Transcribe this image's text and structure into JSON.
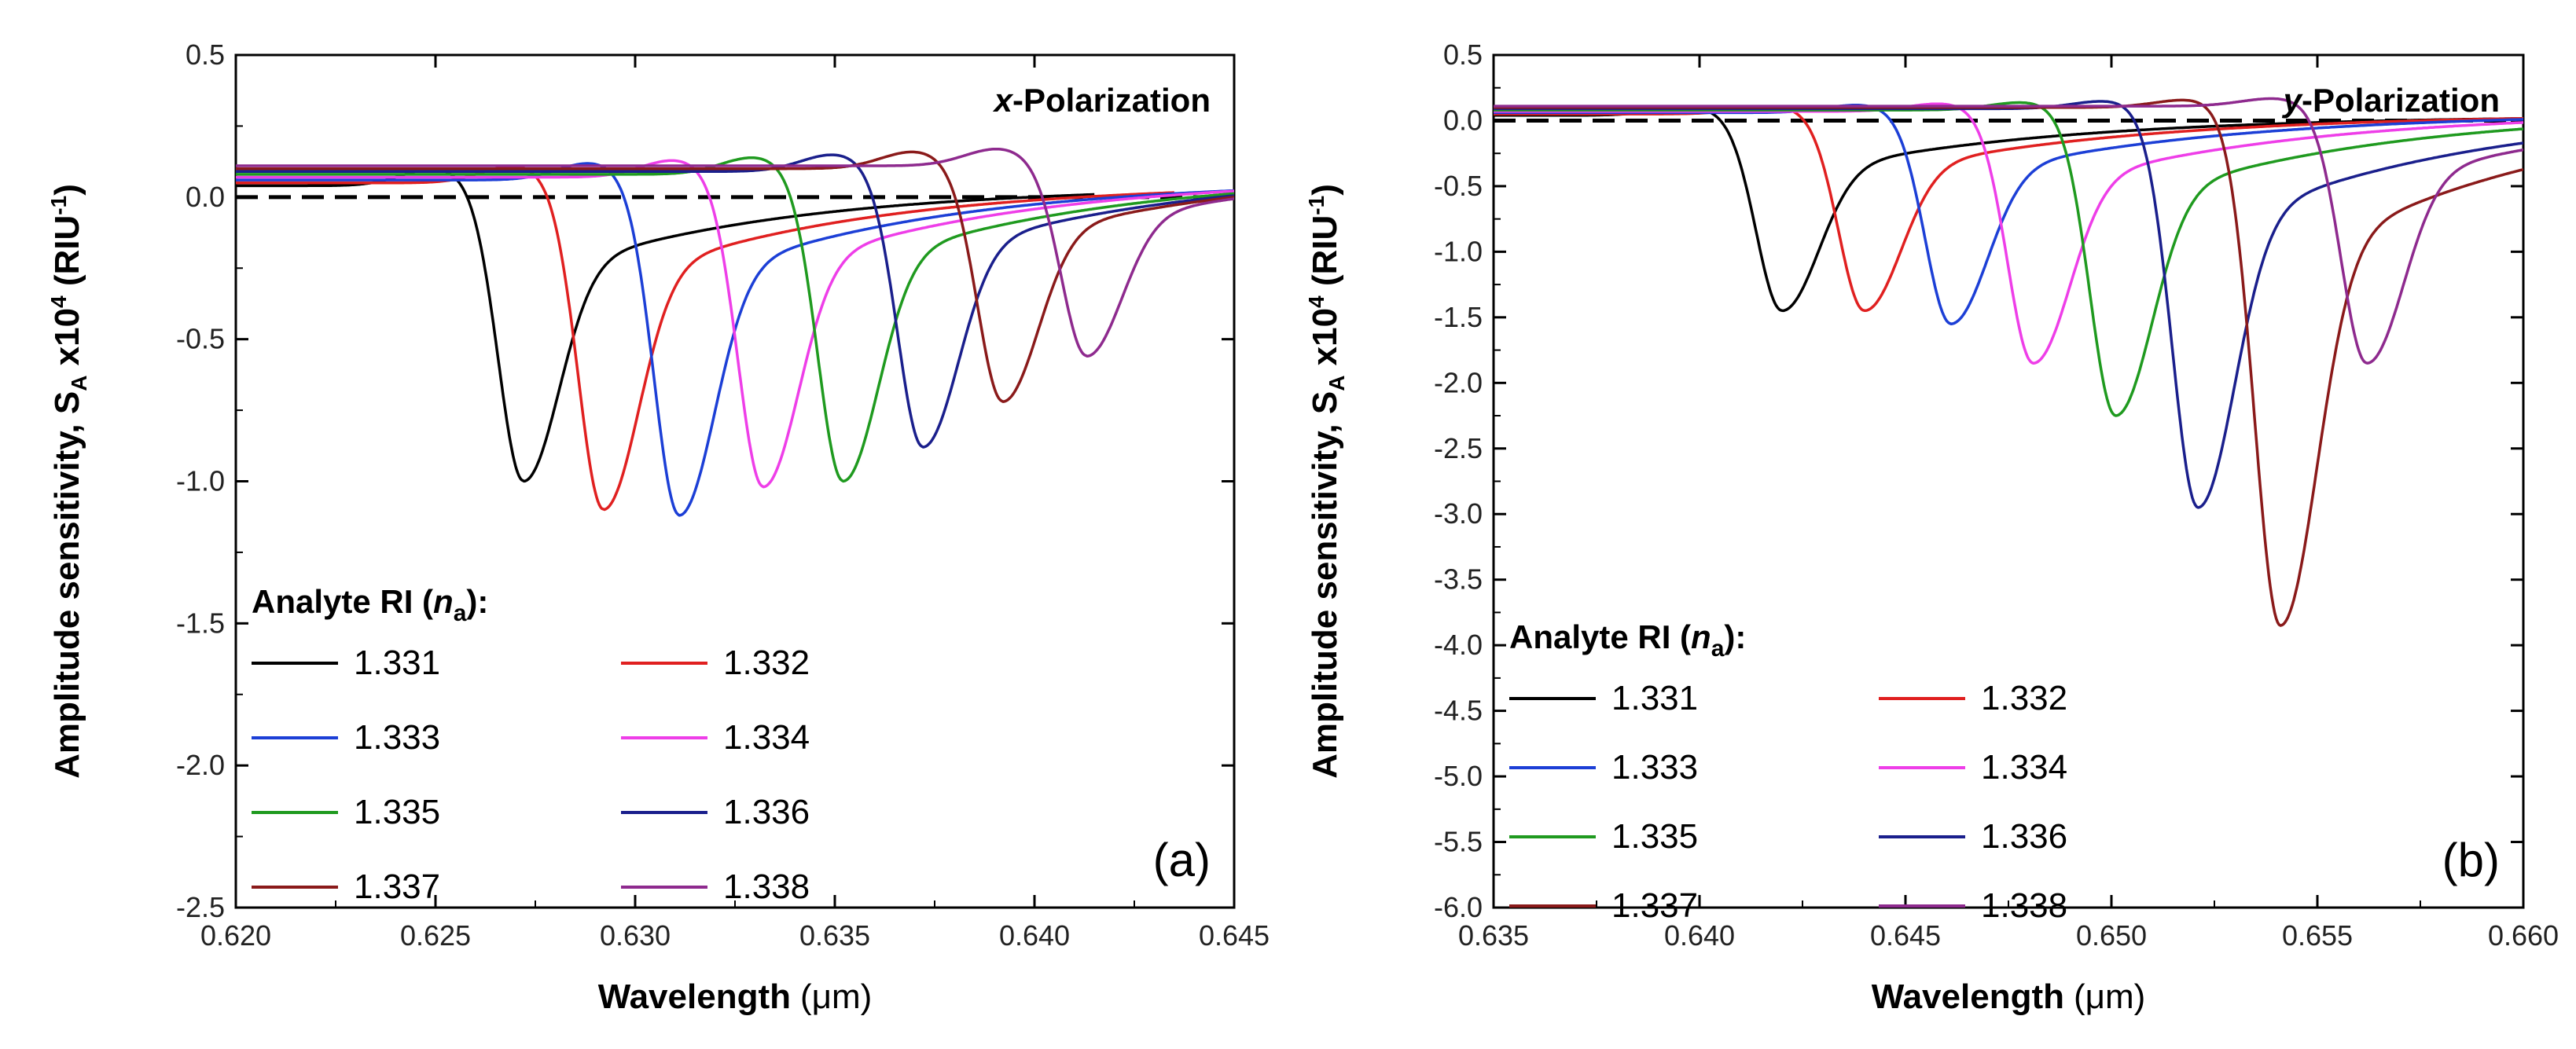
{
  "chart_data": [
    {
      "type": "line",
      "panel": "(a)",
      "annotation": "x-Polarization",
      "annotation_prefix": "x",
      "annotation_suffix": "-Polarization",
      "xlabel": "Wavelength",
      "xlabel_unit": "(μm)",
      "ylabel_main": "Amplitude sensitivity, ",
      "ylabel_var": "S",
      "ylabel_sub": "A",
      "ylabel_mult": " x10",
      "ylabel_exp": "4",
      "ylabel_unit": " (RIU",
      "ylabel_unit_exp": "-1",
      "ylabel_close": ")",
      "xlim": [
        0.62,
        0.645
      ],
      "ylim": [
        -2.5,
        0.5
      ],
      "xticks": [
        0.62,
        0.625,
        0.63,
        0.635,
        0.64,
        0.645
      ],
      "xtick_labels": [
        "0.620",
        "0.625",
        "0.630",
        "0.635",
        "0.640",
        "0.645"
      ],
      "yticks": [
        -2.5,
        -2.0,
        -1.5,
        -1.0,
        -0.5,
        0.0,
        0.5
      ],
      "ytick_labels": [
        "-2.5",
        "-2.0",
        "-1.5",
        "-1.0",
        "-0.5",
        "0.0",
        "0.5"
      ],
      "legend_title_prefix": "Analyte RI (",
      "legend_title_var": "n",
      "legend_title_sub": "a",
      "legend_title_suffix": "):",
      "baseline": 0.0,
      "series": [
        {
          "name": "1.331",
          "color": "#000000",
          "dip_center": 0.6272,
          "dip_depth": -1.0,
          "max_x": 0.6415
        },
        {
          "name": "1.332",
          "color": "#e02020",
          "dip_center": 0.6292,
          "dip_depth": -1.1,
          "max_x": 0.6435
        },
        {
          "name": "1.333",
          "color": "#1c3fd6",
          "dip_center": 0.6311,
          "dip_depth": -1.12,
          "max_x": 0.645
        },
        {
          "name": "1.334",
          "color": "#ee3ee8",
          "dip_center": 0.6332,
          "dip_depth": -1.02,
          "max_x": 0.645
        },
        {
          "name": "1.335",
          "color": "#1f9a1f",
          "dip_center": 0.6352,
          "dip_depth": -1.0,
          "max_x": 0.645
        },
        {
          "name": "1.336",
          "color": "#1a1f8c",
          "dip_center": 0.6372,
          "dip_depth": -0.88,
          "max_x": 0.645
        },
        {
          "name": "1.337",
          "color": "#8a1a1a",
          "dip_center": 0.6392,
          "dip_depth": -0.72,
          "max_x": 0.645
        },
        {
          "name": "1.338",
          "color": "#8e2a8e",
          "dip_center": 0.6413,
          "dip_depth": -0.56,
          "max_x": 0.645
        }
      ]
    },
    {
      "type": "line",
      "panel": "(b)",
      "annotation": "y-Polarization",
      "annotation_prefix": "y",
      "annotation_suffix": "-Polarization",
      "xlabel": "Wavelength",
      "xlabel_unit": "(μm)",
      "ylabel_main": "Amplitude sensitivity, ",
      "ylabel_var": "S",
      "ylabel_sub": "A",
      "ylabel_mult": " x10",
      "ylabel_exp": "4",
      "ylabel_unit": " (RIU",
      "ylabel_unit_exp": "-1",
      "ylabel_close": ")",
      "xlim": [
        0.635,
        0.66
      ],
      "ylim": [
        -6.0,
        0.5
      ],
      "xticks": [
        0.635,
        0.64,
        0.645,
        0.65,
        0.655,
        0.66
      ],
      "xtick_labels": [
        "0.635",
        "0.640",
        "0.645",
        "0.650",
        "0.655",
        "0.660"
      ],
      "yticks": [
        -6.0,
        -5.5,
        -5.0,
        -4.5,
        -4.0,
        -3.5,
        -3.0,
        -2.5,
        -2.0,
        -1.5,
        -1.0,
        -0.5,
        0.0,
        0.5
      ],
      "ytick_labels": [
        "-6.0",
        "-5.5",
        "-5.0",
        "-4.5",
        "-4.0",
        "-3.5",
        "-3.0",
        "-2.5",
        "-2.0",
        "-1.5",
        "-1.0",
        "-0.5",
        "0.0",
        "0.5"
      ],
      "legend_title_prefix": "Analyte RI (",
      "legend_title_var": "n",
      "legend_title_sub": "a",
      "legend_title_suffix": "):",
      "baseline": 0.0,
      "series": [
        {
          "name": "1.331",
          "color": "#000000",
          "dip_center": 0.642,
          "dip_depth": -1.45,
          "max_x": 0.66
        },
        {
          "name": "1.332",
          "color": "#e02020",
          "dip_center": 0.644,
          "dip_depth": -1.45,
          "max_x": 0.66
        },
        {
          "name": "1.333",
          "color": "#1c3fd6",
          "dip_center": 0.6461,
          "dip_depth": -1.55,
          "max_x": 0.66
        },
        {
          "name": "1.334",
          "color": "#ee3ee8",
          "dip_center": 0.6481,
          "dip_depth": -1.85,
          "max_x": 0.66
        },
        {
          "name": "1.335",
          "color": "#1f9a1f",
          "dip_center": 0.6501,
          "dip_depth": -2.25,
          "max_x": 0.66
        },
        {
          "name": "1.336",
          "color": "#1a1f8c",
          "dip_center": 0.6521,
          "dip_depth": -2.95,
          "max_x": 0.66
        },
        {
          "name": "1.337",
          "color": "#8a1a1a",
          "dip_center": 0.6541,
          "dip_depth": -3.85,
          "max_x": 0.66
        },
        {
          "name": "1.338",
          "color": "#8e2a8e",
          "dip_center": 0.6562,
          "dip_depth": -1.85,
          "max_x": 0.66
        }
      ]
    }
  ]
}
